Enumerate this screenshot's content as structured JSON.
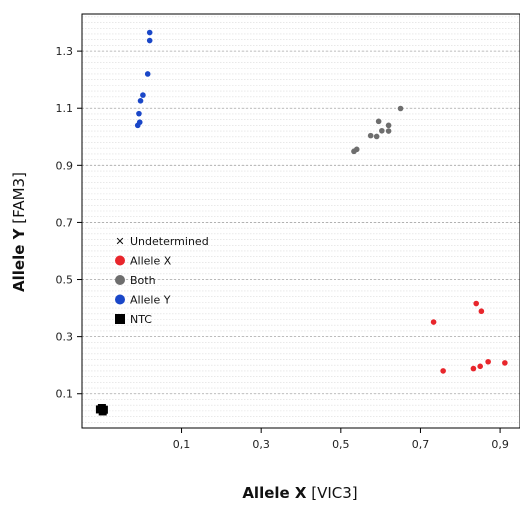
{
  "chart_data": {
    "type": "scatter",
    "xlabel": {
      "bold": "Allele X",
      "normal": " [VIC3]"
    },
    "ylabel": {
      "bold": "Allele Y",
      "normal": " [FAM3]"
    },
    "xlim": [
      -0.15,
      0.95
    ],
    "ylim": [
      -0.02,
      1.43
    ],
    "xticks": [
      0.1,
      0.3,
      0.5,
      0.7,
      0.9
    ],
    "xtick_labels": [
      "0,1",
      "0,3",
      "0,5",
      "0,7",
      "0,9"
    ],
    "yticks": [
      0.1,
      0.3,
      0.5,
      0.7,
      0.9,
      1.1,
      1.3
    ],
    "ytick_labels": [
      "0.1",
      "0.3",
      "0.5",
      "0.7",
      "0.9",
      "1.1",
      "1.3"
    ],
    "grid": true,
    "legend_position": "center-left",
    "series": [
      {
        "name": "Undetermined",
        "color": "#111111",
        "marker": "x",
        "points": []
      },
      {
        "name": "Allele X",
        "color": "#e8262c",
        "marker": "circle",
        "points": [
          [
            0.733,
            0.351
          ],
          [
            0.757,
            0.18
          ],
          [
            0.833,
            0.188
          ],
          [
            0.84,
            0.416
          ],
          [
            0.85,
            0.196
          ],
          [
            0.853,
            0.389
          ],
          [
            0.87,
            0.212
          ],
          [
            0.912,
            0.208
          ]
        ]
      },
      {
        "name": "Both",
        "color": "#6e6e6e",
        "marker": "circle",
        "points": [
          [
            0.533,
            0.949
          ],
          [
            0.54,
            0.956
          ],
          [
            0.575,
            1.004
          ],
          [
            0.59,
            1.001
          ],
          [
            0.595,
            1.054
          ],
          [
            0.603,
            1.021
          ],
          [
            0.62,
            1.04
          ],
          [
            0.62,
            1.02
          ],
          [
            0.65,
            1.099
          ]
        ]
      },
      {
        "name": "Allele Y",
        "color": "#1a47c8",
        "marker": "circle",
        "points": [
          [
            -0.01,
            1.04
          ],
          [
            -0.007,
            1.081
          ],
          [
            -0.005,
            1.051
          ],
          [
            -0.003,
            1.126
          ],
          [
            0.003,
            1.146
          ],
          [
            0.015,
            1.22
          ],
          [
            0.02,
            1.337
          ],
          [
            0.02,
            1.365
          ]
        ]
      },
      {
        "name": "NTC",
        "color": "#000000",
        "marker": "square",
        "points": [
          [
            -0.105,
            0.045
          ],
          [
            -0.098,
            0.038
          ],
          [
            -0.1,
            0.05
          ],
          [
            -0.095,
            0.044
          ]
        ]
      }
    ]
  }
}
